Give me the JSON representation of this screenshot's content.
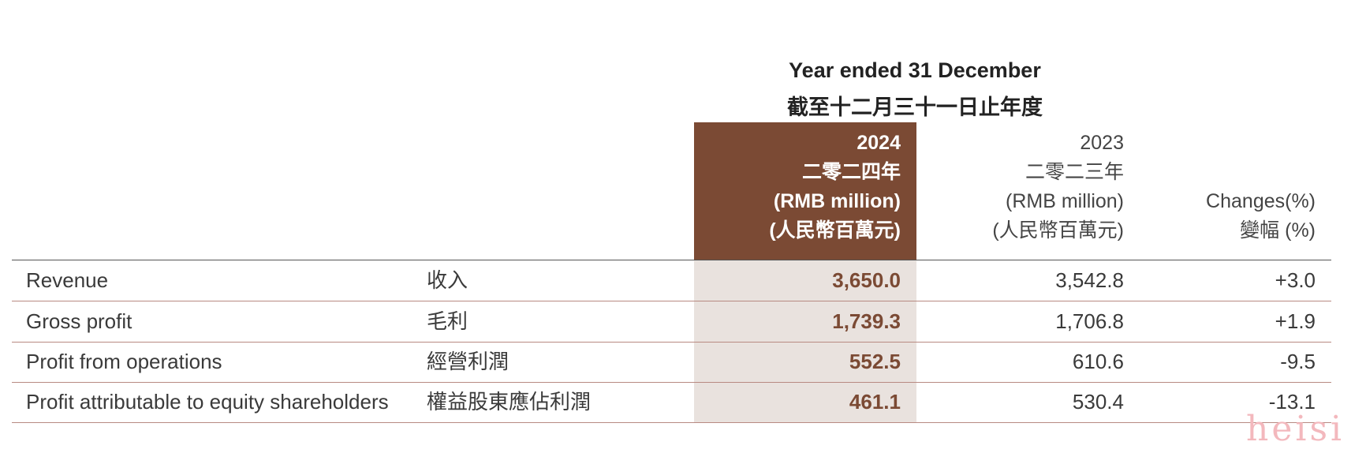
{
  "header": {
    "title_en": "Year ended 31 December",
    "title_zh": "截至十二月三十一日止年度",
    "col_2024": {
      "year": "2024",
      "year_zh": "二零二四年",
      "unit": "(RMB million)",
      "unit_zh": "(人民幣百萬元)"
    },
    "col_2023": {
      "year": "2023",
      "year_zh": "二零二三年",
      "unit": "(RMB million)",
      "unit_zh": "(人民幣百萬元)"
    },
    "col_change": {
      "label": "Changes(%)",
      "label_zh": "變幅 (%)"
    }
  },
  "rows": [
    {
      "label": "Revenue",
      "label_zh": "收入",
      "v2024": "3,650.0",
      "v2023": "3,542.8",
      "change": "+3.0"
    },
    {
      "label": "Gross profit",
      "label_zh": "毛利",
      "v2024": "1,739.3",
      "v2023": "1,706.8",
      "change": "+1.9"
    },
    {
      "label": "Profit from operations",
      "label_zh": "經營利潤",
      "v2024": "552.5",
      "v2023": "610.6",
      "change": "-9.5"
    },
    {
      "label": "Profit attributable to equity shareholders",
      "label_zh": "權益股東應佔利潤",
      "v2024": "461.1",
      "v2023": "530.4",
      "change": "-13.1"
    }
  ],
  "watermark": "heisi",
  "colors": {
    "highlight": "#7b4a34",
    "highlight_light": "#e9e2de",
    "rule": "#b88a82"
  }
}
